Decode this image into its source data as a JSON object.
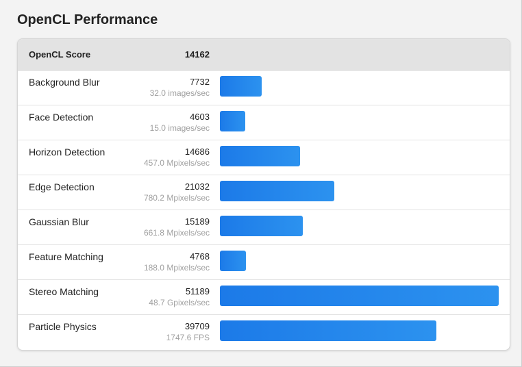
{
  "page_title": "OpenCL Performance",
  "chart_data": {
    "type": "bar",
    "orientation": "horizontal",
    "header": {
      "label": "OpenCL Score",
      "value": "14162"
    },
    "bar_color": "#1c7ae8",
    "xlim": [
      0,
      51189
    ],
    "rows": [
      {
        "name": "Background Blur",
        "score": 7732,
        "rate": "32.0 images/sec"
      },
      {
        "name": "Face Detection",
        "score": 4603,
        "rate": "15.0 images/sec"
      },
      {
        "name": "Horizon Detection",
        "score": 14686,
        "rate": "457.0 Mpixels/sec"
      },
      {
        "name": "Edge Detection",
        "score": 21032,
        "rate": "780.2 Mpixels/sec"
      },
      {
        "name": "Gaussian Blur",
        "score": 15189,
        "rate": "661.8 Mpixels/sec"
      },
      {
        "name": "Feature Matching",
        "score": 4768,
        "rate": "188.0 Mpixels/sec"
      },
      {
        "name": "Stereo Matching",
        "score": 51189,
        "rate": "48.7 Gpixels/sec"
      },
      {
        "name": "Particle Physics",
        "score": 39709,
        "rate": "1747.6 FPS"
      }
    ]
  }
}
